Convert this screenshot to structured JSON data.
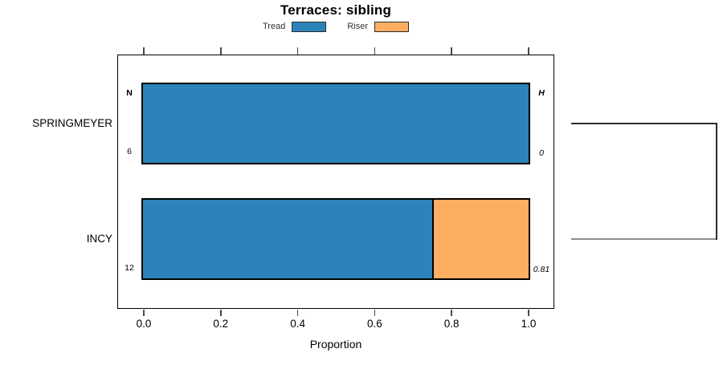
{
  "title": "Terraces: sibling",
  "legend": [
    {
      "label": "Tread",
      "color": "#2b83ba"
    },
    {
      "label": "Riser",
      "color": "#fdae61"
    }
  ],
  "headers": {
    "count": "N",
    "entropy": "H"
  },
  "rows": [
    {
      "label": "SPRINGMEYER",
      "count": "6",
      "entropy": "0",
      "segments": [
        {
          "series": "Tread",
          "fraction": 1.0,
          "color": "#2b83ba"
        }
      ]
    },
    {
      "label": "INCY",
      "count": "12",
      "entropy": "0.81",
      "segments": [
        {
          "series": "Tread",
          "fraction": 0.75,
          "color": "#2b83ba"
        },
        {
          "series": "Riser",
          "fraction": 0.25,
          "color": "#fdae61"
        }
      ]
    }
  ],
  "axis": {
    "label": "Proportion",
    "tick_values": [
      0,
      0.2,
      0.4,
      0.6,
      0.8,
      1.0
    ],
    "tick_labels": [
      "0.0",
      "0.2",
      "0.4",
      "0.6",
      "0.8",
      "1.0"
    ]
  },
  "chart_data": {
    "type": "bar",
    "orientation": "horizontal",
    "stacked": true,
    "title": "Terraces: sibling",
    "xlabel": "Proportion",
    "ylabel": "",
    "xlim": [
      0,
      1
    ],
    "x_ticks": [
      0,
      0.2,
      0.4,
      0.6,
      0.8,
      1.0
    ],
    "categories": [
      "SPRINGMEYER",
      "INCY"
    ],
    "series": [
      {
        "name": "Tread",
        "color": "#2b83ba",
        "values": [
          1.0,
          0.75
        ]
      },
      {
        "name": "Riser",
        "color": "#fdae61",
        "values": [
          0.0,
          0.25
        ]
      }
    ],
    "annotations": {
      "N": [
        6,
        12
      ],
      "H": [
        0,
        0.81
      ]
    },
    "legend_position": "top",
    "grid": false,
    "right_dendrogram_joins": [
      "SPRINGMEYER",
      "INCY"
    ]
  },
  "colors": {
    "tread": "#2b83ba",
    "riser": "#fdae61",
    "bar_border": "#000000",
    "box_border": "#000000",
    "tick": "#4a4a4a",
    "text": "#000000",
    "legend_text": "#333333",
    "dendro_dark": "#2b2b2b",
    "dendro_light": "#8c8c8c",
    "background": "#ffffff"
  }
}
